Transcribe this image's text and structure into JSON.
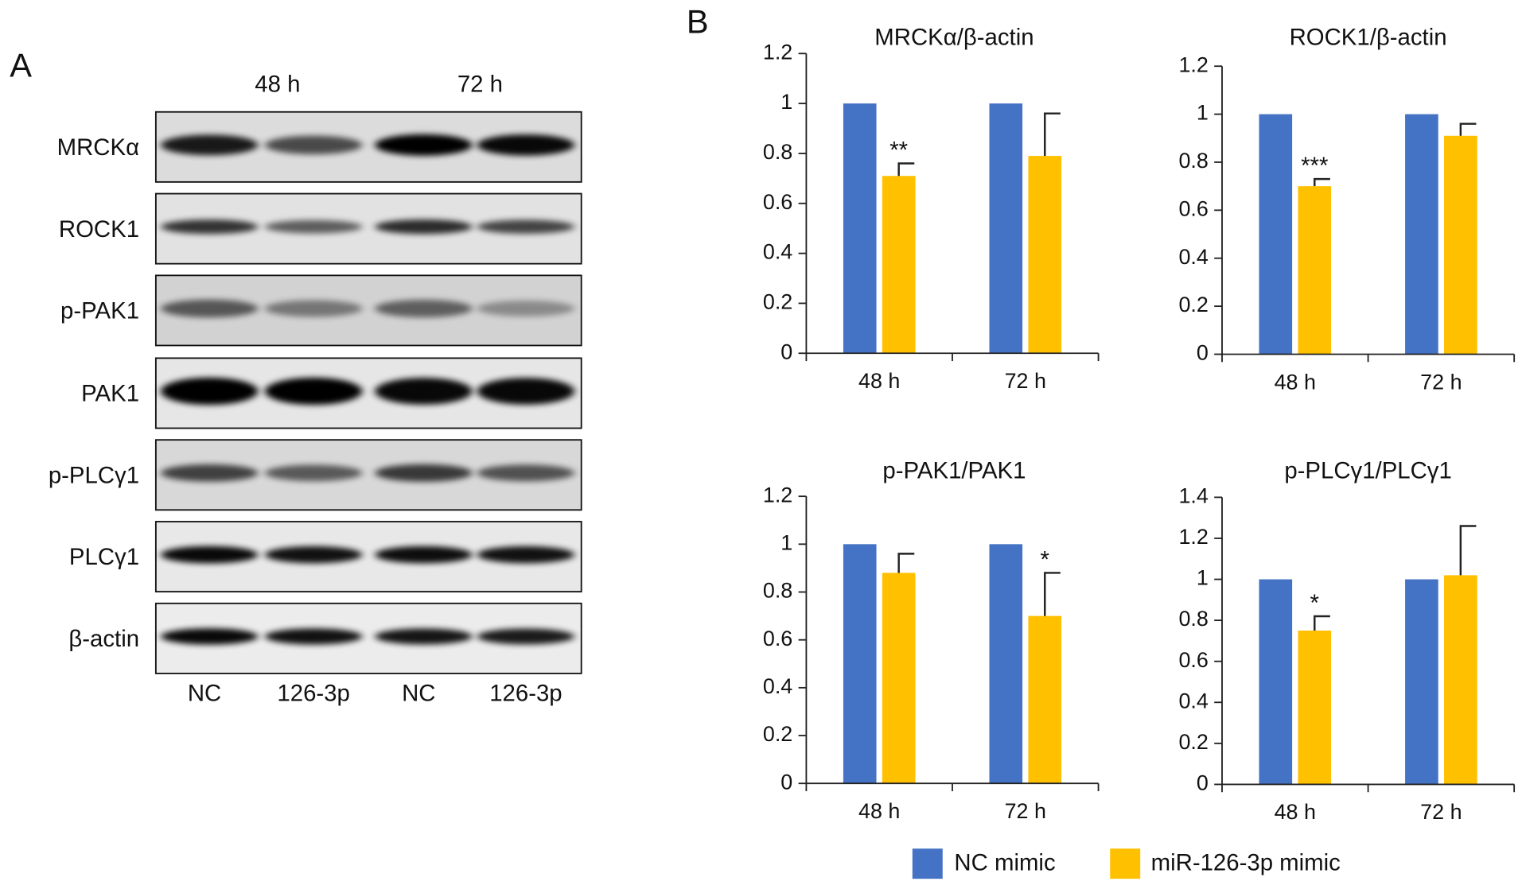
{
  "panel_labels": [
    "A",
    "B"
  ],
  "blot": {
    "time_points": [
      "48 h",
      "72 h"
    ],
    "rows": [
      "MRCKα",
      "ROCK1",
      "p-PAK1",
      "PAK1",
      "p-PLCγ1",
      "PLCγ1",
      "β-actin"
    ],
    "lanes": [
      "NC",
      "126-3p",
      "NC",
      "126-3p"
    ]
  },
  "chart_data": [
    {
      "type": "bar",
      "title": "MRCKα/β-actin",
      "categories": [
        "48 h",
        "72 h"
      ],
      "series": [
        {
          "name": "NC mimic",
          "color": "#4472c4",
          "values": [
            1,
            1
          ]
        },
        {
          "name": "miR-126-3p mimic",
          "color": "#ffc000",
          "values": [
            0.71,
            0.79
          ],
          "errors": [
            0.05,
            0.17
          ],
          "significance": [
            "**",
            null
          ]
        }
      ],
      "ylim": [
        0,
        1.2
      ],
      "yticks": [
        0,
        0.2,
        0.4,
        0.6,
        0.8,
        1,
        1.2
      ]
    },
    {
      "type": "bar",
      "title": "ROCK1/β-actin",
      "categories": [
        "48 h",
        "72 h"
      ],
      "series": [
        {
          "name": "NC mimic",
          "color": "#4472c4",
          "values": [
            1,
            1
          ]
        },
        {
          "name": "miR-126-3p mimic",
          "color": "#ffc000",
          "values": [
            0.7,
            0.91
          ],
          "errors": [
            0.03,
            0.05
          ],
          "significance": [
            "***",
            null
          ]
        }
      ],
      "ylim": [
        0,
        1.2
      ],
      "yticks": [
        0,
        0.2,
        0.4,
        0.6,
        0.8,
        1,
        1.2
      ]
    },
    {
      "type": "bar",
      "title": "p-PAK1/PAK1",
      "categories": [
        "48 h",
        "72 h"
      ],
      "series": [
        {
          "name": "NC mimic",
          "color": "#4472c4",
          "values": [
            1,
            1
          ]
        },
        {
          "name": "miR-126-3p mimic",
          "color": "#ffc000",
          "values": [
            0.88,
            0.7
          ],
          "errors": [
            0.08,
            0.18
          ],
          "significance": [
            null,
            "*"
          ]
        }
      ],
      "ylim": [
        0,
        1.2
      ],
      "yticks": [
        0,
        0.2,
        0.4,
        0.6,
        0.8,
        1,
        1.2
      ]
    },
    {
      "type": "bar",
      "title": "p-PLCγ1/PLCγ1",
      "categories": [
        "48 h",
        "72 h"
      ],
      "series": [
        {
          "name": "NC mimic",
          "color": "#4472c4",
          "values": [
            1,
            1
          ]
        },
        {
          "name": "miR-126-3p mimic",
          "color": "#ffc000",
          "values": [
            0.75,
            1.02
          ],
          "errors": [
            0.07,
            0.24
          ],
          "significance": [
            "*",
            null
          ]
        }
      ],
      "ylim": [
        0,
        1.4
      ],
      "yticks": [
        0,
        0.2,
        0.4,
        0.6,
        0.8,
        1,
        1.2,
        1.4
      ]
    }
  ]
}
